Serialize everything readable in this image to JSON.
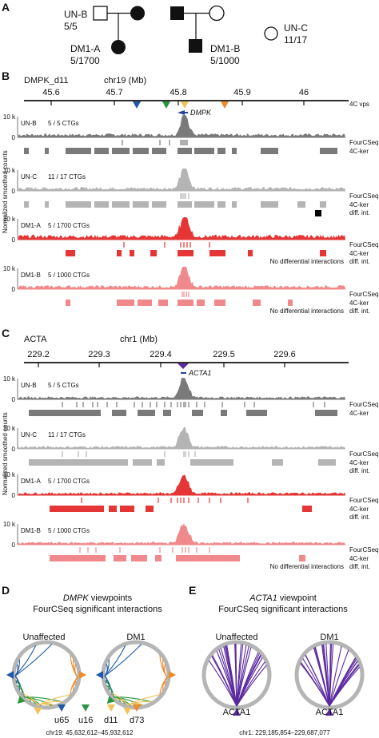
{
  "panel_labels": {
    "a": "A",
    "b": "B",
    "c": "C",
    "d": "D",
    "e": "E"
  },
  "pedigree": {
    "unb": {
      "name": "UN-B",
      "ratio": "5/5"
    },
    "unc": {
      "name": "UN-C",
      "ratio": "11/17"
    },
    "dm1a": {
      "name": "DM1-A",
      "ratio": "5/1700"
    },
    "dm1b": {
      "name": "DM1-B",
      "ratio": "5/1000"
    }
  },
  "colors": {
    "unb": "#7a7a7a",
    "unc": "#b4b4b4",
    "dm1a": "#e53535",
    "dm1b": "#f0898b",
    "u65": "#1f5aa8",
    "u16": "#2a9640",
    "d11": "#f2c45a",
    "d73": "#ee8b2a",
    "acta": "#5b2aa0",
    "arrow": "#2b3f9e"
  },
  "panelB": {
    "locus": "DMPK_d11",
    "axis_title": "chr19 (Mb)",
    "ticks": [
      "45.6",
      "45.7",
      "45.8",
      "45.9",
      "46"
    ],
    "vp_label": "4C vps",
    "gene": "DMPK",
    "ylabel": "Normalized smoothed counts",
    "tracks": [
      {
        "sample": "UN-B",
        "ctg": "5 / 5 CTGs",
        "tick": "10 k",
        "zero": "0",
        "labels": [
          "FourCSeq",
          "4C-ker"
        ],
        "note": ""
      },
      {
        "sample": "UN-C",
        "ctg": "11 / 17 CTGs",
        "tick": "10 k",
        "zero": "0",
        "labels": [
          "FourCSeq",
          "4C-ker",
          "diff. int."
        ],
        "note": ""
      },
      {
        "sample": "DM1-A",
        "ctg": "5 / 1700 CTGs",
        "tick": "10 k",
        "zero": "0",
        "labels": [
          "FourCSeq",
          "4C-ker",
          "diff. int."
        ],
        "note": "No differential interactions"
      },
      {
        "sample": "DM1-B",
        "ctg": "5 / 1000 CTGs",
        "tick": "10 k",
        "zero": "0",
        "labels": [
          "FourCSeq",
          "4C-ker",
          "diff. int."
        ],
        "note": "No differential interactions"
      }
    ]
  },
  "panelC": {
    "locus": "ACTA",
    "axis_title": "chr1 (Mb)",
    "ticks": [
      "229.2",
      "229.3",
      "229.4",
      "229.5",
      "229.6"
    ],
    "gene": "ACTA1",
    "ylabel": "Normalized smoothed counts",
    "tracks": [
      {
        "sample": "UN-B",
        "ctg": "5 / 5 CTGs",
        "tick": "10 k",
        "zero": "0",
        "labels": [
          "FourCSeq",
          "4C-ker"
        ],
        "note": ""
      },
      {
        "sample": "UN-C",
        "ctg": "11 / 17 CTGs",
        "tick": "10 k",
        "zero": "0",
        "labels": [
          "FourCSeq",
          "4C-ker",
          "diff. int."
        ],
        "note": ""
      },
      {
        "sample": "DM1-A",
        "ctg": "5 / 1700 CTGs",
        "tick": "10 k",
        "zero": "0",
        "labels": [
          "FourCSeq",
          "4C-ker",
          "diff. int."
        ],
        "note": ""
      },
      {
        "sample": "DM1-B",
        "ctg": "5 / 1000 CTGs",
        "tick": "10 k",
        "zero": "0",
        "labels": [
          "FourCSeq",
          "4C-ker",
          "diff. int."
        ],
        "note": "No differential interactions"
      }
    ]
  },
  "panelD": {
    "title_gene": "DMPK",
    "title_rest": " viewpoints",
    "title2": "FourCSeq significant interactions",
    "left": "Unaffected",
    "right": "DM1",
    "legend": [
      "u65",
      "u16",
      "d11",
      "d73"
    ],
    "coords": "chr19: 45,632,612–45,932,612"
  },
  "panelE": {
    "title_gene": "ACTA1",
    "title_rest": " viewpoint",
    "title2": "FourCSeq significant interactions",
    "left": "Unaffected",
    "right": "DM1",
    "vp": "ACTA1",
    "coords": "chr1: 229,185,854–229,687,077"
  }
}
